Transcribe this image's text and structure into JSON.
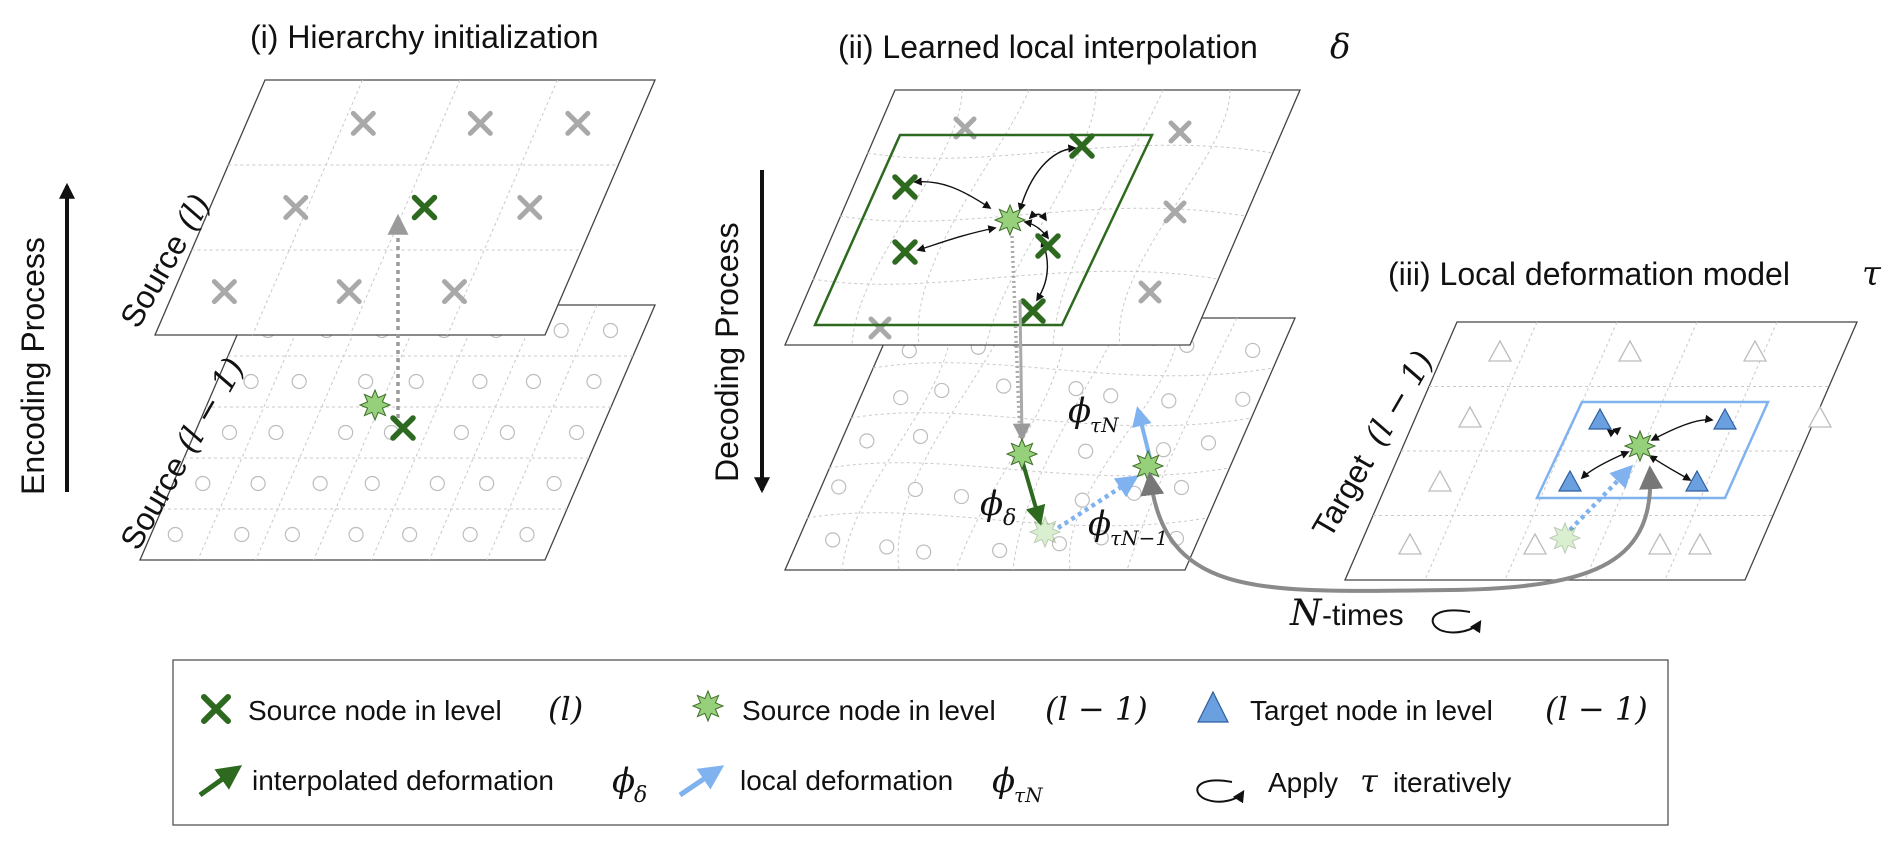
{
  "panels": {
    "i_title": "(i) Hierarchy initialization",
    "ii_title": "(ii) Learned local interpolation",
    "ii_symbol": "δ",
    "iii_title": "(iii) Local deformation model",
    "iii_symbol": "τ"
  },
  "axes": {
    "encoding": "Encoding Process",
    "decoding": "Decoding Process"
  },
  "plane_labels": {
    "source_l_text": "Source",
    "source_l_math": "(l)",
    "source_l1_text": "Source",
    "source_l1_math": "(l − 1)",
    "target_l1_text": "Target",
    "target_l1_math": "(l − 1)"
  },
  "annotations": {
    "phi": "ϕ",
    "delta_sub": "δ",
    "tauN_sub": "τN",
    "tauN1_sub": "τN−1",
    "n_math": "N",
    "n_text": "-times"
  },
  "legend": {
    "source_l_text": "Source node in level",
    "source_l_math": "(l)",
    "source_l1_text": "Source node in level",
    "source_l1_math": "(l − 1)",
    "target_l1_text": "Target node in level",
    "target_l1_math": "(l − 1)",
    "interp_text": "interpolated deformation",
    "interp_math": "ϕδ",
    "local_text": "local deformation",
    "local_math": "ϕτN",
    "apply_text_1": "Apply",
    "apply_math": "τ",
    "apply_text_2": "iteratively"
  },
  "colors": {
    "source_node_l": "#2d6a1f",
    "source_node_l1": "#97d07a",
    "target_node": "#6a9fe0",
    "interp_arrow": "#2d6a1f",
    "local_arrow": "#7fb2ee",
    "neighborhood_green": "#2d6a1f",
    "neighborhood_blue": "#7fb2ee",
    "inactive_node": "#a9a9a9"
  }
}
